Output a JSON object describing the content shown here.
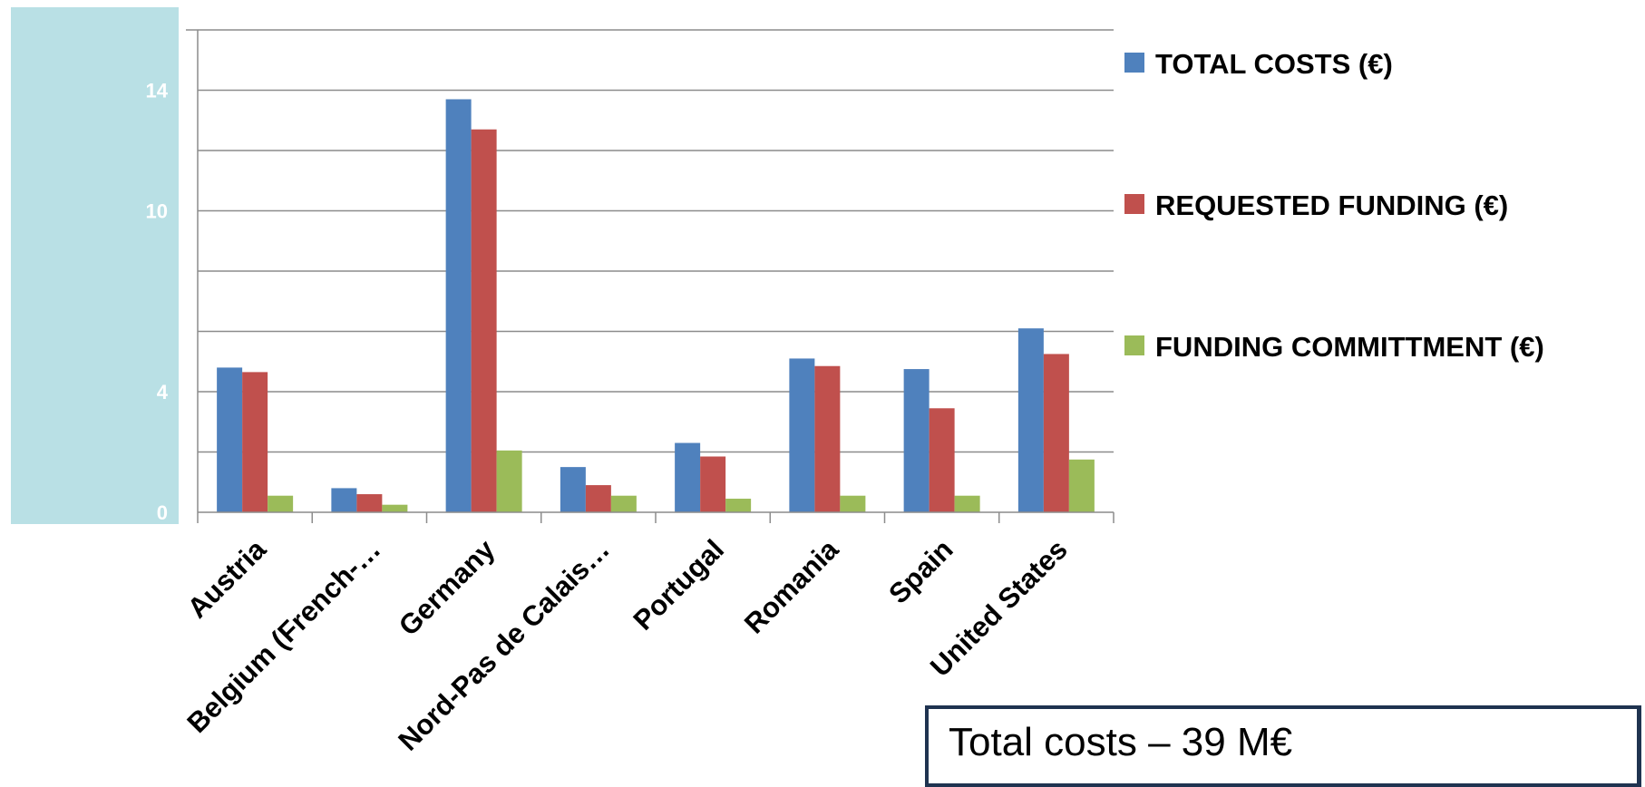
{
  "colors": {
    "axis_panel": "#b9e0e5",
    "grid": "#8c8c8c",
    "tick_text": "#ffffff",
    "series": [
      "#4f81bd",
      "#c0504d",
      "#9bbb59"
    ],
    "info_border": "#1f3350"
  },
  "chart_data": {
    "type": "bar",
    "title": "",
    "xlabel": "",
    "ylabel": "",
    "categories": [
      "Austria",
      "Belgium (French-…",
      "Germany",
      "Nord-Pas de Calais…",
      "Portugal",
      "Romania",
      "Spain",
      "United States"
    ],
    "series": [
      {
        "name": "TOTAL COSTS (€)",
        "values": [
          4.8,
          0.8,
          13.7,
          1.5,
          2.3,
          5.1,
          4.75,
          6.1
        ]
      },
      {
        "name": "REQUESTED FUNDING (€)",
        "values": [
          4.65,
          0.6,
          12.7,
          0.9,
          1.85,
          4.85,
          3.45,
          5.25
        ]
      },
      {
        "name": "FUNDING COMMITTMENT (€)",
        "values": [
          0.55,
          0.25,
          2.05,
          0.55,
          0.45,
          0.55,
          0.55,
          1.75
        ]
      }
    ],
    "ylim": [
      0,
      16
    ],
    "y_tick_labels": [
      {
        "value": 0,
        "label": "0"
      },
      {
        "value": 4,
        "label": "4"
      },
      {
        "value": 10,
        "label": "10"
      },
      {
        "value": 14,
        "label": "14"
      }
    ],
    "grid": true,
    "legend_position": "right"
  },
  "info_box": {
    "text": "Total costs – 39 M€"
  }
}
